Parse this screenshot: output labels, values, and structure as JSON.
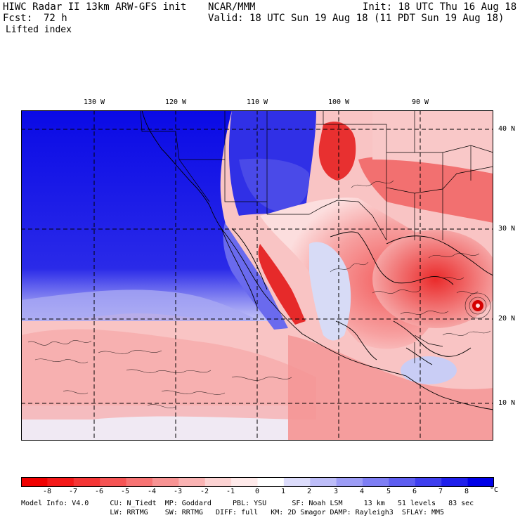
{
  "header": {
    "model_title": "HIWC Radar II 13km ARW-GFS init",
    "org": "NCAR/MMM",
    "init": "Init: 18 UTC Thu 16 Aug 18",
    "fcst_label": "Fcst:",
    "fcst_value": "72 h",
    "valid": "Valid: 18 UTC Sun 19 Aug 18 (11 PDT Sun 19 Aug 18)",
    "field": "Lifted index"
  },
  "map": {
    "lon_labels": [
      "130 W",
      "120 W",
      "110 W",
      "100 W",
      "90 W"
    ],
    "lat_labels": [
      "40 N",
      "30 N",
      "20 N",
      "10 N"
    ],
    "grid": "dashed",
    "colors": {
      "stable_max": "#0000e6",
      "unstable_max": "#e60000",
      "neutral": "#ffffff",
      "outline": "#000000"
    }
  },
  "colorbar": {
    "tick_labels": [
      "-8",
      "-7",
      "-6",
      "-5",
      "-4",
      "-3",
      "-2",
      "-1",
      "0",
      "1",
      "2",
      "3",
      "4",
      "5",
      "6",
      "7",
      "8"
    ],
    "unit": "°C",
    "colors": [
      "#f00000",
      "#f41818",
      "#f53535",
      "#f65454",
      "#f77373",
      "#f89393",
      "#fab3b3",
      "#fcd3d3",
      "#ffeaea",
      "#ffffff",
      "#dcdcfb",
      "#bdbdf8",
      "#9d9df6",
      "#7e7ef4",
      "#5e5ef1",
      "#3f3fef",
      "#1f1fec",
      "#0000e8"
    ]
  },
  "footer": {
    "line1": "Model Info: V4.0     CU: N_Tiedt  MP: Goddard     PBL: YSU      SF: Noah LSM     13 km   51 levels   83 sec",
    "line2": "                     LW: RRTMG    SW: RRTMG   DIFF: full   KM: 2D Smagor DAMP: Rayleigh3  SFLAY: MM5"
  }
}
